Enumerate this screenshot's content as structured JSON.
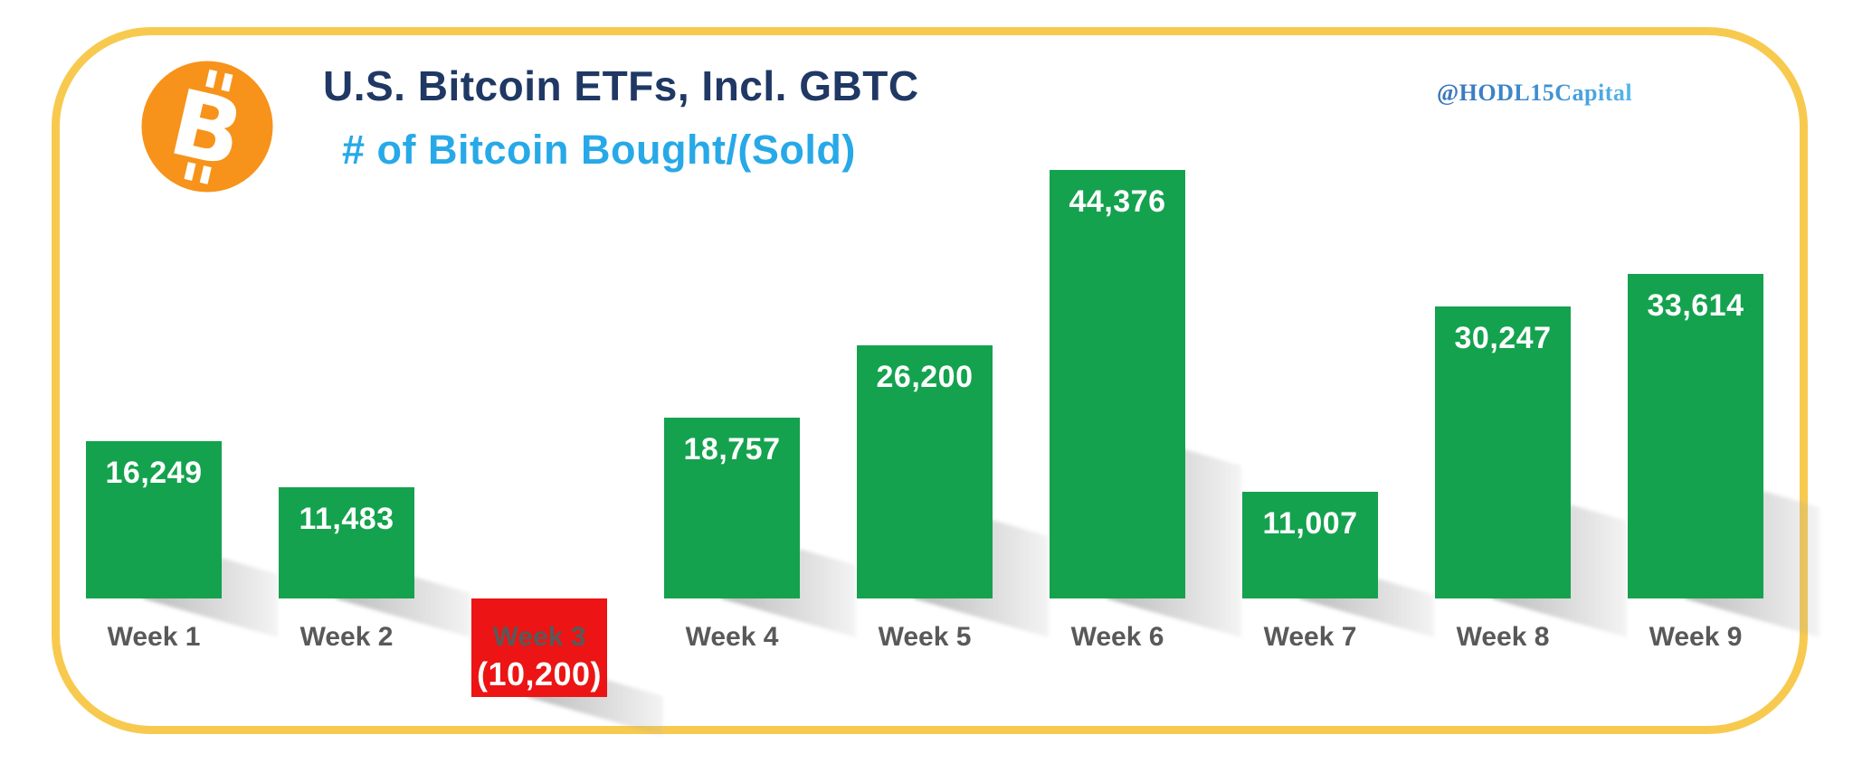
{
  "header": {
    "title": "U.S. Bitcoin ETFs, Incl. GBTC",
    "subtitle": "# of Bitcoin Bought/(Sold)",
    "watermark": "@HODL15Capital",
    "logo_icon": "bitcoin-icon",
    "logo_letter": "B"
  },
  "colors": {
    "positive_bar": "#14a24e",
    "negative_bar": "#ec1414",
    "frame_border": "#f7ca4f",
    "title_text": "#1f3864",
    "subtitle_text": "#27a9e8",
    "category_label": "#595959",
    "value_label": "#ffffff",
    "bitcoin_orange": "#f7931a",
    "shadow_gray": "#9a9a9a"
  },
  "chart_data": {
    "type": "bar",
    "title": "U.S. Bitcoin ETFs, Incl. GBTC",
    "subtitle": "# of Bitcoin Bought/(Sold)",
    "categories": [
      "Week 1",
      "Week 2",
      "Week 3",
      "Week 4",
      "Week 5",
      "Week 6",
      "Week 7",
      "Week 8",
      "Week 9"
    ],
    "values": [
      16249,
      11483,
      -10200,
      18757,
      26200,
      44376,
      11007,
      30247,
      33614
    ],
    "value_labels": [
      "16,249",
      "11,483",
      "(10,200)",
      "18,757",
      "26,200",
      "44,376",
      "11,007",
      "30,247",
      "33,614"
    ],
    "xlabel": "",
    "ylabel": "",
    "ylim": [
      -10200,
      44376
    ],
    "grid": false,
    "axis_visible": false,
    "legend": "none",
    "value_label_position": "inside-top",
    "negative_bar_style": "red-below-baseline"
  }
}
